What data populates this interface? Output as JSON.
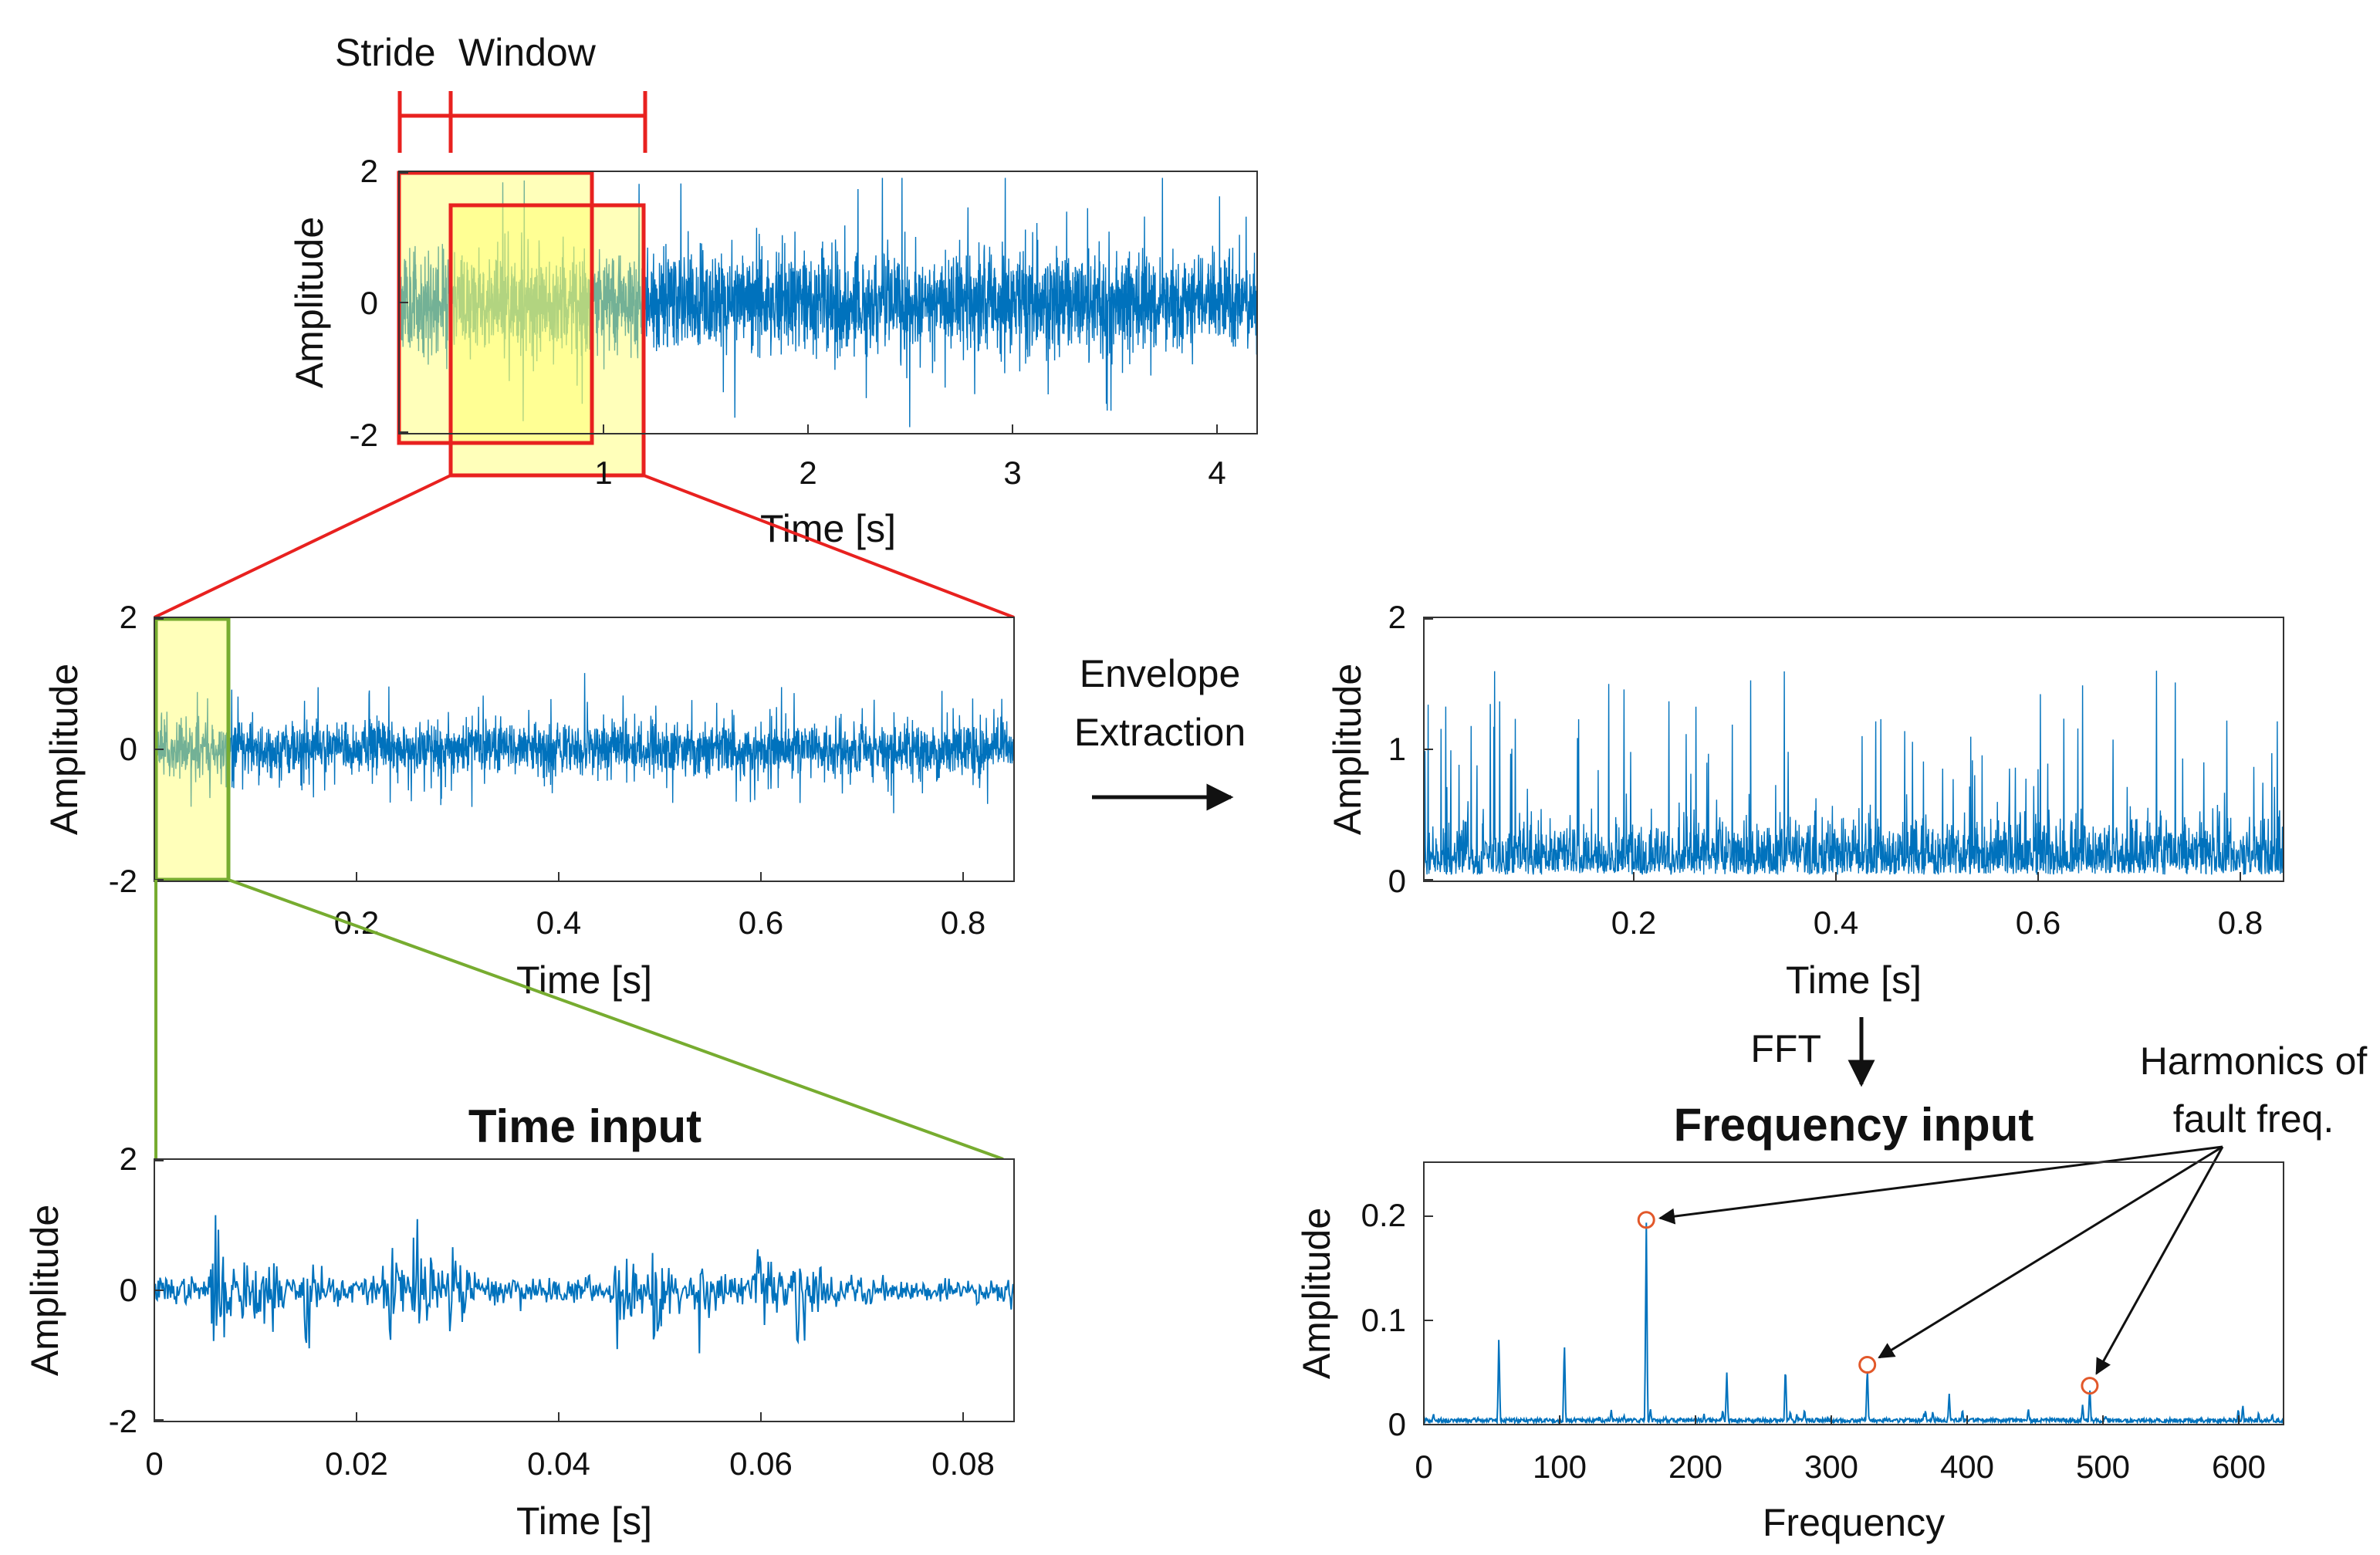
{
  "colors": {
    "signal": "#0072BD",
    "window_red": "#E8211F",
    "zoom_green": "#77AC30",
    "highlight_fill": "#FFFF66",
    "peak_marker": "#E2582A",
    "text": "#111111"
  },
  "annotations": {
    "stride_label": "Stride",
    "window_label": "Window",
    "envelope_line1": "Envelope",
    "envelope_line2": "Extraction",
    "fft_label": "FFT",
    "time_input_title": "Time input",
    "frequency_input_title": "Frequency input",
    "harmonics_line1": "Harmonics of",
    "harmonics_line2": "fault freq."
  },
  "chart_data": [
    {
      "id": "raw",
      "type": "line",
      "title": "",
      "xlabel": "Time [s]",
      "ylabel": "Amplitude",
      "xlim": [
        0,
        4.2
      ],
      "ylim": [
        -2,
        2
      ],
      "xticks": [
        "1",
        "2",
        "3",
        "4"
      ],
      "yticks": [
        "2",
        "0",
        "-2"
      ],
      "signal": {
        "kind": "vibration",
        "amplitude": 1.0,
        "spike_rate": 0.02
      },
      "windows": [
        {
          "name": "Window 1",
          "x_range": [
            0.0,
            0.95
          ]
        },
        {
          "name": "Window 2",
          "x_range": [
            0.25,
            1.2
          ]
        }
      ]
    },
    {
      "id": "window",
      "type": "line",
      "title": "",
      "xlabel": "Time [s]",
      "ylabel": "Amplitude",
      "xlim": [
        0,
        0.85
      ],
      "ylim": [
        -2,
        2
      ],
      "xticks": [
        "0.2",
        "0.4",
        "0.6",
        "0.8"
      ],
      "yticks": [
        "2",
        "0",
        "-2"
      ],
      "signal": {
        "kind": "vibration",
        "amplitude": 0.55,
        "spike_rate": 0.03
      },
      "highlight": {
        "x_range": [
          0.0,
          0.07
        ]
      }
    },
    {
      "id": "time_input",
      "type": "line",
      "title": "Time input",
      "xlabel": "Time [s]",
      "ylabel": "Amplitude",
      "xlim": [
        0,
        0.085
      ],
      "ylim": [
        -2,
        2
      ],
      "xticks": [
        "0",
        "0.02",
        "0.04",
        "0.06",
        "0.08"
      ],
      "yticks": [
        "2",
        "0",
        "-2"
      ],
      "signal": {
        "kind": "bursts",
        "amplitude": 0.2,
        "burst_amplitude": 0.85,
        "burst_count": 14
      }
    },
    {
      "id": "envelope",
      "type": "line",
      "title": "",
      "xlabel": "Time [s]",
      "ylabel": "Amplitude",
      "xlim": [
        0,
        0.85
      ],
      "ylim": [
        0,
        2
      ],
      "xticks": [
        "0.2",
        "0.4",
        "0.6",
        "0.8"
      ],
      "yticks": [
        "2",
        "1",
        "0"
      ],
      "signal": {
        "kind": "envelope",
        "baseline": 0.28,
        "spike_max": 1.6
      }
    },
    {
      "id": "spectrum",
      "type": "line",
      "title": "Frequency input",
      "xlabel": "Frequency",
      "ylabel": "Amplitude",
      "xlim": [
        0,
        630
      ],
      "ylim": [
        0,
        0.25
      ],
      "xticks": [
        "0",
        "100",
        "200",
        "300",
        "400",
        "500",
        "600"
      ],
      "yticks": [
        "0.2",
        "0.1",
        "0"
      ],
      "peaks": [
        {
          "f": 55,
          "a": 0.085
        },
        {
          "f": 103,
          "a": 0.082
        },
        {
          "f": 163,
          "a": 0.195
        },
        {
          "f": 222,
          "a": 0.05
        },
        {
          "f": 265,
          "a": 0.058
        },
        {
          "f": 325,
          "a": 0.057
        },
        {
          "f": 385,
          "a": 0.03
        },
        {
          "f": 488,
          "a": 0.037
        }
      ],
      "marked_harmonics": [
        {
          "f": 163,
          "a": 0.195
        },
        {
          "f": 325,
          "a": 0.057
        },
        {
          "f": 488,
          "a": 0.037
        }
      ]
    }
  ]
}
